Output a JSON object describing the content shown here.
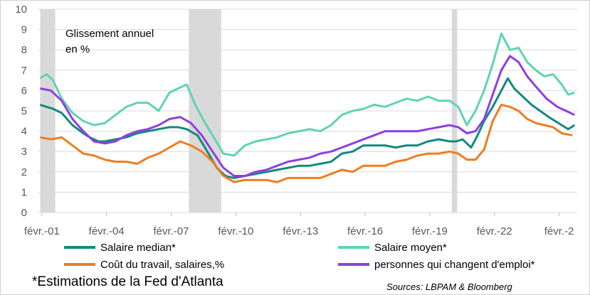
{
  "chart_data": {
    "type": "line",
    "annotation": [
      "Glissement annuel",
      "en %"
    ],
    "ylim": [
      0,
      10
    ],
    "yticks": [
      0,
      1,
      2,
      3,
      4,
      5,
      6,
      7,
      8,
      9,
      10
    ],
    "xlim": [
      2000.92,
      2025.92
    ],
    "xticks": [
      {
        "label": "févr.-01",
        "x": 2001.08
      },
      {
        "label": "févr.-04",
        "x": 2004.08
      },
      {
        "label": "févr.-07",
        "x": 2007.08
      },
      {
        "label": "févr.-10",
        "x": 2010.08
      },
      {
        "label": "févr.-13",
        "x": 2013.08
      },
      {
        "label": "févr.-16",
        "x": 2016.08
      },
      {
        "label": "févr.-19",
        "x": 2019.08
      },
      {
        "label": "févr.-22",
        "x": 2022.08
      },
      {
        "label": "févr.-2",
        "x": 2025.08
      }
    ],
    "recessions": [
      [
        2001.0,
        2001.7
      ],
      [
        2007.9,
        2009.4
      ],
      [
        2020.1,
        2020.35
      ]
    ],
    "series": [
      {
        "name": "Salaire median*",
        "color": "#138a7e",
        "points": [
          [
            2001.0,
            5.3
          ],
          [
            2001.3,
            5.2
          ],
          [
            2001.6,
            5.1
          ],
          [
            2002.0,
            4.9
          ],
          [
            2002.5,
            4.3
          ],
          [
            2003.0,
            3.9
          ],
          [
            2003.3,
            3.7
          ],
          [
            2003.7,
            3.5
          ],
          [
            2004.0,
            3.5
          ],
          [
            2004.5,
            3.6
          ],
          [
            2005.0,
            3.7
          ],
          [
            2005.5,
            3.9
          ],
          [
            2006.0,
            4.0
          ],
          [
            2006.5,
            4.1
          ],
          [
            2007.0,
            4.2
          ],
          [
            2007.4,
            4.2
          ],
          [
            2007.8,
            4.1
          ],
          [
            2008.3,
            3.8
          ],
          [
            2008.7,
            3.1
          ],
          [
            2009.2,
            2.2
          ],
          [
            2009.6,
            1.8
          ],
          [
            2010.0,
            1.7
          ],
          [
            2010.5,
            1.8
          ],
          [
            2011.0,
            1.9
          ],
          [
            2011.5,
            2.0
          ],
          [
            2012.0,
            2.1
          ],
          [
            2012.5,
            2.2
          ],
          [
            2013.0,
            2.3
          ],
          [
            2013.5,
            2.3
          ],
          [
            2014.0,
            2.4
          ],
          [
            2014.5,
            2.5
          ],
          [
            2015.0,
            2.9
          ],
          [
            2015.5,
            3.0
          ],
          [
            2016.0,
            3.3
          ],
          [
            2016.5,
            3.3
          ],
          [
            2017.0,
            3.3
          ],
          [
            2017.5,
            3.2
          ],
          [
            2018.0,
            3.3
          ],
          [
            2018.5,
            3.3
          ],
          [
            2019.0,
            3.5
          ],
          [
            2019.5,
            3.6
          ],
          [
            2020.0,
            3.5
          ],
          [
            2020.3,
            3.5
          ],
          [
            2020.6,
            3.6
          ],
          [
            2021.0,
            3.2
          ],
          [
            2021.3,
            3.8
          ],
          [
            2021.6,
            4.5
          ],
          [
            2022.0,
            5.2
          ],
          [
            2022.4,
            6.0
          ],
          [
            2022.7,
            6.6
          ],
          [
            2023.0,
            6.1
          ],
          [
            2023.4,
            5.7
          ],
          [
            2023.8,
            5.3
          ],
          [
            2024.2,
            5.0
          ],
          [
            2024.6,
            4.7
          ],
          [
            2024.9,
            4.5
          ],
          [
            2025.2,
            4.3
          ],
          [
            2025.5,
            4.1
          ],
          [
            2025.8,
            4.3
          ]
        ]
      },
      {
        "name": "Salaire moyen*",
        "color": "#5fd3b3",
        "points": [
          [
            2001.0,
            6.6
          ],
          [
            2001.3,
            6.8
          ],
          [
            2001.6,
            6.5
          ],
          [
            2002.0,
            5.6
          ],
          [
            2002.5,
            4.9
          ],
          [
            2003.0,
            4.5
          ],
          [
            2003.5,
            4.3
          ],
          [
            2004.0,
            4.4
          ],
          [
            2004.5,
            4.8
          ],
          [
            2005.0,
            5.2
          ],
          [
            2005.5,
            5.4
          ],
          [
            2006.0,
            5.4
          ],
          [
            2006.5,
            5.0
          ],
          [
            2007.0,
            5.9
          ],
          [
            2007.4,
            6.1
          ],
          [
            2007.8,
            6.3
          ],
          [
            2008.2,
            5.3
          ],
          [
            2008.6,
            4.5
          ],
          [
            2009.0,
            3.8
          ],
          [
            2009.5,
            2.9
          ],
          [
            2010.0,
            2.8
          ],
          [
            2010.5,
            3.3
          ],
          [
            2011.0,
            3.5
          ],
          [
            2011.5,
            3.6
          ],
          [
            2012.0,
            3.7
          ],
          [
            2012.5,
            3.9
          ],
          [
            2013.0,
            4.0
          ],
          [
            2013.5,
            4.1
          ],
          [
            2014.0,
            4.0
          ],
          [
            2014.5,
            4.3
          ],
          [
            2015.0,
            4.8
          ],
          [
            2015.5,
            5.0
          ],
          [
            2016.0,
            5.1
          ],
          [
            2016.5,
            5.3
          ],
          [
            2017.0,
            5.2
          ],
          [
            2017.5,
            5.4
          ],
          [
            2018.0,
            5.6
          ],
          [
            2018.5,
            5.5
          ],
          [
            2019.0,
            5.7
          ],
          [
            2019.5,
            5.5
          ],
          [
            2020.0,
            5.5
          ],
          [
            2020.4,
            5.2
          ],
          [
            2020.8,
            4.3
          ],
          [
            2021.2,
            5.0
          ],
          [
            2021.6,
            6.0
          ],
          [
            2022.0,
            7.3
          ],
          [
            2022.4,
            8.8
          ],
          [
            2022.8,
            8.0
          ],
          [
            2023.2,
            8.1
          ],
          [
            2023.6,
            7.4
          ],
          [
            2024.0,
            7.0
          ],
          [
            2024.4,
            6.7
          ],
          [
            2024.8,
            6.8
          ],
          [
            2025.2,
            6.3
          ],
          [
            2025.5,
            5.8
          ],
          [
            2025.8,
            5.9
          ]
        ]
      },
      {
        "name": "Coût du travail, salaires,%",
        "color": "#ee7d1f",
        "points": [
          [
            2001.0,
            3.7
          ],
          [
            2001.5,
            3.6
          ],
          [
            2002.0,
            3.7
          ],
          [
            2002.5,
            3.3
          ],
          [
            2003.0,
            2.9
          ],
          [
            2003.5,
            2.8
          ],
          [
            2004.0,
            2.6
          ],
          [
            2004.5,
            2.5
          ],
          [
            2005.0,
            2.5
          ],
          [
            2005.5,
            2.4
          ],
          [
            2006.0,
            2.7
          ],
          [
            2006.5,
            2.9
          ],
          [
            2007.0,
            3.2
          ],
          [
            2007.5,
            3.5
          ],
          [
            2008.0,
            3.3
          ],
          [
            2008.5,
            3.0
          ],
          [
            2009.0,
            2.5
          ],
          [
            2009.5,
            1.8
          ],
          [
            2010.0,
            1.5
          ],
          [
            2010.5,
            1.6
          ],
          [
            2011.0,
            1.6
          ],
          [
            2011.5,
            1.6
          ],
          [
            2012.0,
            1.5
          ],
          [
            2012.5,
            1.7
          ],
          [
            2013.0,
            1.7
          ],
          [
            2013.5,
            1.7
          ],
          [
            2014.0,
            1.7
          ],
          [
            2014.5,
            1.9
          ],
          [
            2015.0,
            2.1
          ],
          [
            2015.5,
            2.0
          ],
          [
            2016.0,
            2.3
          ],
          [
            2016.5,
            2.3
          ],
          [
            2017.0,
            2.3
          ],
          [
            2017.5,
            2.5
          ],
          [
            2018.0,
            2.6
          ],
          [
            2018.5,
            2.8
          ],
          [
            2019.0,
            2.9
          ],
          [
            2019.5,
            2.9
          ],
          [
            2020.0,
            3.0
          ],
          [
            2020.4,
            2.9
          ],
          [
            2020.8,
            2.6
          ],
          [
            2021.2,
            2.6
          ],
          [
            2021.6,
            3.1
          ],
          [
            2022.0,
            4.5
          ],
          [
            2022.4,
            5.3
          ],
          [
            2022.8,
            5.2
          ],
          [
            2023.2,
            5.0
          ],
          [
            2023.6,
            4.6
          ],
          [
            2024.0,
            4.4
          ],
          [
            2024.4,
            4.3
          ],
          [
            2024.8,
            4.2
          ],
          [
            2025.2,
            3.9
          ],
          [
            2025.7,
            3.8
          ]
        ]
      },
      {
        "name": "personnes qui changent d'emploi*",
        "color": "#8f3fe0",
        "points": [
          [
            2001.0,
            6.1
          ],
          [
            2001.5,
            6.0
          ],
          [
            2002.0,
            5.5
          ],
          [
            2002.5,
            4.6
          ],
          [
            2003.0,
            4.0
          ],
          [
            2003.5,
            3.5
          ],
          [
            2004.0,
            3.4
          ],
          [
            2004.5,
            3.5
          ],
          [
            2005.0,
            3.8
          ],
          [
            2005.5,
            4.0
          ],
          [
            2006.0,
            4.1
          ],
          [
            2006.5,
            4.3
          ],
          [
            2007.0,
            4.6
          ],
          [
            2007.5,
            4.7
          ],
          [
            2008.0,
            4.4
          ],
          [
            2008.5,
            3.8
          ],
          [
            2009.0,
            3.0
          ],
          [
            2009.5,
            2.2
          ],
          [
            2010.0,
            1.8
          ],
          [
            2010.5,
            1.8
          ],
          [
            2011.0,
            2.0
          ],
          [
            2011.5,
            2.1
          ],
          [
            2012.0,
            2.3
          ],
          [
            2012.5,
            2.5
          ],
          [
            2013.0,
            2.6
          ],
          [
            2013.5,
            2.7
          ],
          [
            2014.0,
            2.9
          ],
          [
            2014.5,
            3.0
          ],
          [
            2015.0,
            3.2
          ],
          [
            2015.5,
            3.4
          ],
          [
            2016.0,
            3.6
          ],
          [
            2016.5,
            3.8
          ],
          [
            2017.0,
            4.0
          ],
          [
            2017.5,
            4.0
          ],
          [
            2018.0,
            4.0
          ],
          [
            2018.5,
            4.0
          ],
          [
            2019.0,
            4.1
          ],
          [
            2019.5,
            4.2
          ],
          [
            2020.0,
            4.3
          ],
          [
            2020.4,
            4.2
          ],
          [
            2020.8,
            3.9
          ],
          [
            2021.2,
            4.0
          ],
          [
            2021.6,
            4.6
          ],
          [
            2022.0,
            5.8
          ],
          [
            2022.4,
            7.0
          ],
          [
            2022.8,
            7.7
          ],
          [
            2023.2,
            7.4
          ],
          [
            2023.6,
            6.7
          ],
          [
            2024.0,
            6.2
          ],
          [
            2024.5,
            5.6
          ],
          [
            2025.0,
            5.2
          ],
          [
            2025.4,
            5.0
          ],
          [
            2025.8,
            4.8
          ]
        ]
      }
    ],
    "footnote": "*Estimations de la Fed d'Atlanta",
    "source": "Sources: LBPAM & Bloomberg"
  }
}
